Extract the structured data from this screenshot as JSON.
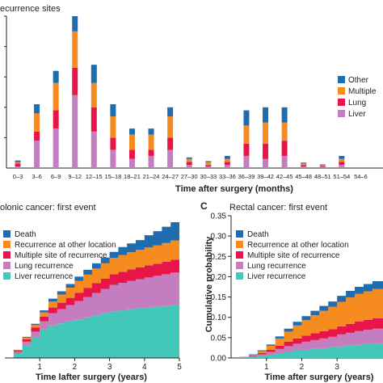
{
  "colors": {
    "other": "#1f6cb0",
    "multiple": "#f68b1f",
    "lung": "#e8154b",
    "liver": "#c47ec0",
    "death": "#1f6cb0",
    "recurrence_other": "#f68b1f",
    "multiple_site": "#e8154b",
    "lung_recurrence": "#c47ec0",
    "liver_recurrence": "#43c7b8"
  },
  "chart_data": [
    {
      "type": "bar",
      "title": "ecurrence sites",
      "xlabel": "Time after surgery (months)",
      "ylabel": "",
      "ylim": [
        0,
        50
      ],
      "stacked": true,
      "categories": [
        "0–3",
        "3–6",
        "6–9",
        "9–12",
        "12–15",
        "15–18",
        "18–21",
        "21–24",
        "24–27",
        "27–30",
        "30–33",
        "33–36",
        "36–39",
        "39–42",
        "42–45",
        "45–48",
        "48–51",
        "51–54",
        "54–6"
      ],
      "series": [
        {
          "name": "Liver",
          "values": [
            0.5,
            9,
            13,
            24,
            12,
            6,
            3,
            4,
            6,
            1,
            0.5,
            1,
            4,
            3,
            4,
            0.5,
            0.3,
            1,
            0
          ]
        },
        {
          "name": "Lung",
          "values": [
            1,
            3,
            6,
            9,
            8,
            4,
            3,
            2,
            4,
            1,
            0.5,
            1,
            4,
            5,
            5,
            0.5,
            0.3,
            1,
            0
          ]
        },
        {
          "name": "Multiple",
          "values": [
            0.5,
            6,
            9,
            12,
            8,
            7,
            5,
            5,
            7,
            1,
            1,
            1,
            6,
            7,
            6,
            0.5,
            0.3,
            1,
            0
          ]
        },
        {
          "name": "Other",
          "values": [
            0.5,
            3,
            4,
            5,
            6,
            4,
            2,
            2,
            3,
            0.5,
            0.3,
            1,
            5,
            5,
            5,
            0.3,
            0.3,
            1,
            0
          ]
        }
      ],
      "legend_position": "right"
    },
    {
      "type": "area",
      "title": "olonic cancer: first event",
      "xlabel": "Time lafter surgery (years)",
      "ylabel": "",
      "xlim": [
        0,
        5
      ],
      "ylim": [
        0,
        0.35
      ],
      "x_ticks": [
        1,
        2,
        3,
        4,
        5
      ],
      "x": [
        0,
        0.25,
        0.5,
        0.75,
        1.0,
        1.25,
        1.5,
        1.75,
        2.0,
        2.25,
        2.5,
        2.75,
        3.0,
        3.25,
        3.5,
        3.75,
        4.0,
        4.25,
        4.5,
        4.75,
        5.0
      ],
      "series": [
        {
          "name": "Liver recurrence",
          "values": [
            0.0,
            0.01,
            0.03,
            0.05,
            0.07,
            0.08,
            0.085,
            0.09,
            0.095,
            0.1,
            0.105,
            0.11,
            0.115,
            0.117,
            0.12,
            0.122,
            0.124,
            0.126,
            0.128,
            0.13,
            0.13
          ]
        },
        {
          "name": "Lung recurrence",
          "values": [
            0.0,
            0.005,
            0.01,
            0.015,
            0.02,
            0.03,
            0.035,
            0.04,
            0.045,
            0.05,
            0.055,
            0.06,
            0.065,
            0.068,
            0.07,
            0.072,
            0.074,
            0.076,
            0.078,
            0.08,
            0.08
          ]
        },
        {
          "name": "Multiple site of recurrence",
          "values": [
            0.0,
            0.002,
            0.006,
            0.01,
            0.012,
            0.014,
            0.016,
            0.018,
            0.02,
            0.022,
            0.024,
            0.025,
            0.026,
            0.027,
            0.028,
            0.029,
            0.03,
            0.03,
            0.031,
            0.032,
            0.032
          ]
        },
        {
          "name": "Recurrence at other location",
          "values": [
            0.0,
            0.002,
            0.004,
            0.006,
            0.01,
            0.015,
            0.02,
            0.025,
            0.03,
            0.033,
            0.036,
            0.038,
            0.04,
            0.041,
            0.042,
            0.043,
            0.044,
            0.045,
            0.046,
            0.047,
            0.048
          ]
        },
        {
          "name": "Death",
          "values": [
            0.0,
            0.001,
            0.002,
            0.003,
            0.005,
            0.007,
            0.008,
            0.009,
            0.01,
            0.012,
            0.013,
            0.014,
            0.015,
            0.02,
            0.022,
            0.024,
            0.03,
            0.035,
            0.04,
            0.045,
            0.05
          ]
        }
      ],
      "legend_position": "top-left"
    },
    {
      "type": "area",
      "title": "Rectal cancer: first event",
      "xlabel": "Time after surgery (years)",
      "ylabel": "Cumulative probability",
      "xlim": [
        0,
        4.3
      ],
      "ylim": [
        0,
        0.35
      ],
      "y_ticks": [
        0.0,
        0.05,
        0.1,
        0.15,
        0.2,
        0.25,
        0.3,
        0.35
      ],
      "x_ticks": [
        1,
        2,
        3
      ],
      "x": [
        0,
        0.25,
        0.5,
        0.75,
        1.0,
        1.25,
        1.5,
        1.75,
        2.0,
        2.25,
        2.5,
        2.75,
        3.0,
        3.25,
        3.5,
        3.75,
        4.0,
        4.3
      ],
      "series": [
        {
          "name": "Liver recurrence",
          "values": [
            0.0,
            0.001,
            0.003,
            0.005,
            0.008,
            0.012,
            0.015,
            0.018,
            0.02,
            0.022,
            0.024,
            0.026,
            0.028,
            0.03,
            0.032,
            0.034,
            0.036,
            0.038
          ]
        },
        {
          "name": "Lung recurrence",
          "values": [
            0.0,
            0.001,
            0.002,
            0.004,
            0.007,
            0.01,
            0.014,
            0.017,
            0.02,
            0.022,
            0.024,
            0.026,
            0.03,
            0.032,
            0.034,
            0.035,
            0.036,
            0.037
          ]
        },
        {
          "name": "Multiple site of recurrence",
          "values": [
            0.0,
            0.0,
            0.001,
            0.003,
            0.005,
            0.008,
            0.011,
            0.013,
            0.015,
            0.017,
            0.018,
            0.019,
            0.02,
            0.022,
            0.024,
            0.025,
            0.026,
            0.027
          ]
        },
        {
          "name": "Recurrence at other location",
          "values": [
            0.0,
            0.001,
            0.002,
            0.005,
            0.01,
            0.018,
            0.025,
            0.032,
            0.038,
            0.044,
            0.05,
            0.055,
            0.06,
            0.065,
            0.068,
            0.07,
            0.072,
            0.074
          ]
        },
        {
          "name": "Death",
          "values": [
            0.0,
            0.0,
            0.001,
            0.002,
            0.003,
            0.005,
            0.007,
            0.009,
            0.01,
            0.011,
            0.012,
            0.013,
            0.015,
            0.016,
            0.017,
            0.018,
            0.019,
            0.02
          ]
        }
      ],
      "legend_position": "top-left"
    }
  ],
  "panel_label_c": "C",
  "legend_top": [
    "Other",
    "Multiple",
    "Lung",
    "Liver"
  ]
}
